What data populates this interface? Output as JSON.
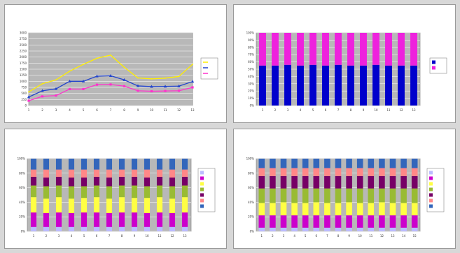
{
  "colors": {
    "plot_bg": "#b8b8b8",
    "grid": "#ffffff",
    "title_bg": "#ffff99",
    "yellow_line": "#ffee00",
    "navy_line": "#2244cc",
    "magenta_line": "#ff33cc"
  },
  "chart_data": [
    {
      "type": "line",
      "title": "",
      "xlabel": "",
      "ylabel": "",
      "ylim": [
        0,
        3000
      ],
      "yticks": [
        0,
        250,
        500,
        750,
        1000,
        1250,
        1500,
        1750,
        2000,
        2250,
        2500,
        2750,
        3000
      ],
      "categories": [
        "1",
        "2",
        "3",
        "4",
        "5",
        "6",
        "7",
        "8",
        "9",
        "10",
        "11",
        "12",
        "13"
      ],
      "series": [
        {
          "name": "",
          "color": "#ffee00",
          "marker": "none",
          "values": [
            560,
            900,
            1060,
            1420,
            1700,
            1950,
            2080,
            1580,
            1140,
            1100,
            1130,
            1200,
            1700
          ]
        },
        {
          "name": "",
          "color": "#2244cc",
          "marker": "triangle",
          "values": [
            350,
            610,
            690,
            1000,
            1000,
            1210,
            1230,
            1060,
            810,
            780,
            790,
            800,
            990
          ]
        },
        {
          "name": "",
          "color": "#ff33cc",
          "marker": "square",
          "values": [
            200,
            380,
            410,
            680,
            680,
            860,
            870,
            800,
            610,
            590,
            600,
            610,
            750
          ]
        }
      ],
      "grid": true,
      "legend": "right"
    },
    {
      "type": "bar",
      "stacked": "percent",
      "title": "",
      "ylim": [
        0,
        100
      ],
      "yticks": [
        0,
        10,
        20,
        30,
        40,
        50,
        60,
        70,
        80,
        90,
        100
      ],
      "categories": [
        "1",
        "2",
        "3",
        "4",
        "5",
        "6",
        "7",
        "8",
        "9",
        "10",
        "11",
        "12",
        "13"
      ],
      "series": [
        {
          "name": "",
          "color": "#0000cc",
          "values": [
            55,
            55,
            56,
            55,
            56,
            55,
            56,
            55,
            55,
            56,
            55,
            55,
            55
          ]
        },
        {
          "name": "",
          "color": "#ee22dd",
          "values": [
            45,
            45,
            44,
            45,
            44,
            45,
            44,
            45,
            45,
            44,
            45,
            45,
            45
          ]
        }
      ],
      "grid": true,
      "legend": "right"
    },
    {
      "type": "bar",
      "stacked": "percent",
      "title": "",
      "ylim": [
        0,
        100
      ],
      "yticks": [
        0,
        20,
        40,
        60,
        80,
        100
      ],
      "categories": [
        "1",
        "2",
        "3",
        "4",
        "5",
        "6",
        "7",
        "8",
        "9",
        "10",
        "11",
        "12",
        "13"
      ],
      "series": [
        {
          "name": "",
          "color": "#bbbbff",
          "values": [
            6,
            6,
            6,
            6,
            6,
            6,
            6,
            6,
            6,
            6,
            6,
            6,
            6
          ]
        },
        {
          "name": "",
          "color": "#cc00cc",
          "values": [
            20,
            19,
            20,
            19,
            20,
            20,
            19,
            20,
            20,
            19,
            20,
            19,
            20
          ]
        },
        {
          "name": "",
          "color": "#ffff44",
          "values": [
            21,
            20,
            21,
            20,
            20,
            21,
            20,
            21,
            20,
            21,
            21,
            20,
            21
          ]
        },
        {
          "name": "",
          "color": "#99bb33",
          "values": [
            16,
            17,
            16,
            17,
            16,
            16,
            17,
            16,
            17,
            16,
            16,
            17,
            16
          ]
        },
        {
          "name": "",
          "color": "#770066",
          "values": [
            12,
            12,
            12,
            12,
            12,
            12,
            12,
            12,
            12,
            12,
            12,
            12,
            12
          ]
        },
        {
          "name": "",
          "color": "#ff8888",
          "values": [
            10,
            11,
            10,
            11,
            11,
            10,
            11,
            10,
            10,
            11,
            10,
            11,
            10
          ]
        },
        {
          "name": "",
          "color": "#3366bb",
          "values": [
            15,
            15,
            15,
            15,
            15,
            15,
            15,
            15,
            15,
            15,
            15,
            15,
            15
          ]
        }
      ],
      "grid": true,
      "legend": "right"
    },
    {
      "type": "bar",
      "stacked": "percent",
      "title": "",
      "ylim": [
        0,
        100
      ],
      "yticks": [
        0,
        20,
        40,
        60,
        80,
        100
      ],
      "categories": [
        "1",
        "2",
        "3",
        "4",
        "5",
        "6",
        "7",
        "8",
        "9",
        "10",
        "11",
        "12",
        "13",
        "14",
        "15"
      ],
      "series": [
        {
          "name": "",
          "color": "#bbbbff",
          "values": [
            5,
            5,
            5,
            5,
            5,
            5,
            5,
            5,
            5,
            5,
            5,
            5,
            5,
            5,
            5
          ]
        },
        {
          "name": "",
          "color": "#cc00cc",
          "values": [
            17,
            17,
            17,
            17,
            17,
            17,
            17,
            17,
            17,
            17,
            17,
            17,
            17,
            17,
            17
          ]
        },
        {
          "name": "",
          "color": "#ffff44",
          "values": [
            17,
            17,
            18,
            17,
            17,
            18,
            17,
            17,
            18,
            17,
            17,
            18,
            17,
            17,
            17
          ]
        },
        {
          "name": "",
          "color": "#99bb33",
          "values": [
            20,
            20,
            19,
            20,
            20,
            19,
            20,
            20,
            19,
            20,
            20,
            19,
            20,
            20,
            20
          ]
        },
        {
          "name": "",
          "color": "#770066",
          "values": [
            17,
            17,
            17,
            17,
            17,
            17,
            17,
            17,
            17,
            17,
            17,
            17,
            17,
            17,
            17
          ]
        },
        {
          "name": "",
          "color": "#ff8888",
          "values": [
            11,
            11,
            11,
            11,
            11,
            11,
            11,
            11,
            11,
            11,
            11,
            11,
            11,
            11,
            11
          ]
        },
        {
          "name": "",
          "color": "#3366bb",
          "values": [
            13,
            13,
            13,
            13,
            13,
            13,
            13,
            13,
            13,
            13,
            13,
            13,
            13,
            13,
            13
          ]
        }
      ],
      "grid": true,
      "legend": "right"
    }
  ]
}
